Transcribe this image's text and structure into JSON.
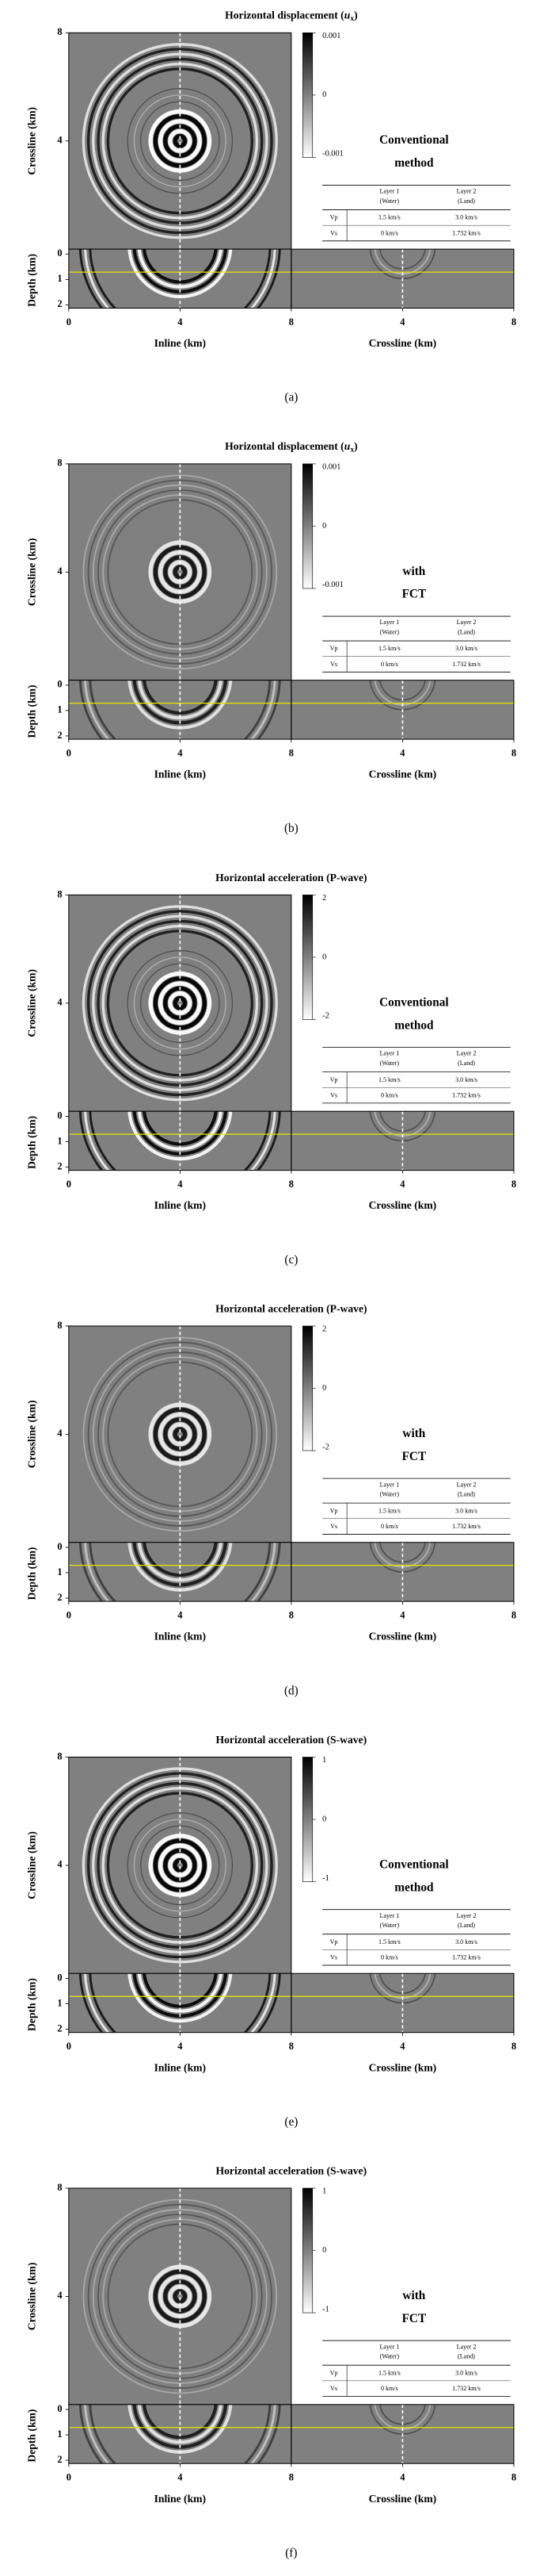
{
  "panels": [
    {
      "title": {
        "text": "Horizontal displacement (",
        "var": "u",
        "sub": "x",
        "end": ")"
      },
      "colorbar": {
        "clim": [
          -0.001,
          0.001
        ],
        "ticks": [
          0.001,
          0,
          -0.001
        ]
      },
      "method": [
        "Conventional",
        "method"
      ],
      "table": {
        "header": [
          [
            "Layer 1",
            "(Water)"
          ],
          [
            "Layer 2",
            "(Land)"
          ]
        ],
        "rows": [
          [
            "Vp",
            "1.5 km/s",
            "3.0 km/s"
          ],
          [
            "Vs",
            "0 km/s",
            "1.732 km/s"
          ]
        ]
      },
      "map": {
        "ylabel": "Crossline (km)",
        "ylim": [
          0,
          8
        ],
        "yticks": [
          4,
          8
        ]
      },
      "section": {
        "ylabel": "Depth (km)",
        "ylim": [
          0,
          2
        ],
        "yticks": [
          0,
          1,
          2
        ],
        "xlim": [
          0,
          8
        ],
        "inline": {
          "label": "Inline (km)",
          "ticks": [
            0,
            4,
            8
          ]
        },
        "crossline": {
          "label": "Crossline (km)",
          "ticks": [
            4,
            8
          ]
        }
      },
      "caption": "(a)"
    },
    {
      "title": {
        "text": "Horizontal displacement (",
        "var": "u",
        "sub": "x",
        "end": ")"
      },
      "colorbar": {
        "clim": [
          -0.001,
          0.001
        ],
        "ticks": [
          0.001,
          0,
          -0.001
        ]
      },
      "method": [
        "with",
        "FCT"
      ],
      "table": {
        "header": [
          [
            "Layer 1",
            "(Water)"
          ],
          [
            "Layer 2",
            "(Land)"
          ]
        ],
        "rows": [
          [
            "Vp",
            "1.5 km/s",
            "3.0 km/s"
          ],
          [
            "Vs",
            "0 km/s",
            "1.732 km/s"
          ]
        ]
      },
      "map": {
        "ylabel": "Crossline (km)",
        "ylim": [
          0,
          8
        ],
        "yticks": [
          4,
          8
        ]
      },
      "section": {
        "ylabel": "Depth (km)",
        "ylim": [
          0,
          2
        ],
        "yticks": [
          0,
          1,
          2
        ],
        "xlim": [
          0,
          8
        ],
        "inline": {
          "label": "Inline (km)",
          "ticks": [
            0,
            4,
            8
          ]
        },
        "crossline": {
          "label": "Crossline (km)",
          "ticks": [
            4,
            8
          ]
        }
      },
      "caption": "(b)"
    },
    {
      "title": "Horizontal acceleration (P-wave)",
      "colorbar": {
        "clim": [
          -2,
          2
        ],
        "ticks": [
          2,
          0,
          -2
        ]
      },
      "method": [
        "Conventional",
        "method"
      ],
      "table": {
        "header": [
          [
            "Layer 1",
            "(Water)"
          ],
          [
            "Layer 2",
            "(Land)"
          ]
        ],
        "rows": [
          [
            "Vp",
            "1.5 km/s",
            "3.0 km/s"
          ],
          [
            "Vs",
            "0 km/s",
            "1.732 km/s"
          ]
        ]
      },
      "map": {
        "ylabel": "Crossline (km)",
        "ylim": [
          0,
          8
        ],
        "yticks": [
          4,
          8
        ]
      },
      "section": {
        "ylabel": "Depth (km)",
        "ylim": [
          0,
          2
        ],
        "yticks": [
          0,
          1,
          2
        ],
        "xlim": [
          0,
          8
        ],
        "inline": {
          "label": "Inline (km)",
          "ticks": [
            0,
            4,
            8
          ]
        },
        "crossline": {
          "label": "Crossline (km)",
          "ticks": [
            4,
            8
          ]
        }
      },
      "caption": "(c)"
    },
    {
      "title": "Horizontal acceleration (P-wave)",
      "colorbar": {
        "clim": [
          -2,
          2
        ],
        "ticks": [
          2,
          0,
          -2
        ]
      },
      "method": [
        "with",
        "FCT"
      ],
      "table": {
        "header": [
          [
            "Layer 1",
            "(Water)"
          ],
          [
            "Layer 2",
            "(Land)"
          ]
        ],
        "rows": [
          [
            "Vp",
            "1.5 km/s",
            "3.0 km/s"
          ],
          [
            "Vs",
            "0 km/s",
            "1.732 km/s"
          ]
        ]
      },
      "map": {
        "ylabel": "Crossline (km)",
        "ylim": [
          0,
          8
        ],
        "yticks": [
          4,
          8
        ]
      },
      "section": {
        "ylabel": "Depth (km)",
        "ylim": [
          0,
          2
        ],
        "yticks": [
          0,
          1,
          2
        ],
        "xlim": [
          0,
          8
        ],
        "inline": {
          "label": "Inline (km)",
          "ticks": [
            0,
            4,
            8
          ]
        },
        "crossline": {
          "label": "Crossline (km)",
          "ticks": [
            4,
            8
          ]
        }
      },
      "caption": "(d)"
    },
    {
      "title": "Horizontal acceleration (S-wave)",
      "colorbar": {
        "clim": [
          -1,
          1
        ],
        "ticks": [
          1,
          0,
          -1
        ]
      },
      "method": [
        "Conventional",
        "method"
      ],
      "table": {
        "header": [
          [
            "Layer 1",
            "(Water)"
          ],
          [
            "Layer 2",
            "(Land)"
          ]
        ],
        "rows": [
          [
            "Vp",
            "1.5 km/s",
            "3.0 km/s"
          ],
          [
            "Vs",
            "0 km/s",
            "1.732 km/s"
          ]
        ]
      },
      "map": {
        "ylabel": "Crossline (km)",
        "ylim": [
          0,
          8
        ],
        "yticks": [
          4,
          8
        ]
      },
      "section": {
        "ylabel": "Depth (km)",
        "ylim": [
          0,
          2
        ],
        "yticks": [
          0,
          1,
          2
        ],
        "xlim": [
          0,
          8
        ],
        "inline": {
          "label": "Inline (km)",
          "ticks": [
            0,
            4,
            8
          ]
        },
        "crossline": {
          "label": "Crossline (km)",
          "ticks": [
            4,
            8
          ]
        }
      },
      "caption": "(e)"
    },
    {
      "title": "Horizontal acceleration (S-wave)",
      "colorbar": {
        "clim": [
          -1,
          1
        ],
        "ticks": [
          1,
          0,
          -1
        ]
      },
      "method": [
        "with",
        "FCT"
      ],
      "table": {
        "header": [
          [
            "Layer 1",
            "(Water)"
          ],
          [
            "Layer 2",
            "(Land)"
          ]
        ],
        "rows": [
          [
            "Vp",
            "1.5 km/s",
            "3.0 km/s"
          ],
          [
            "Vs",
            "0 km/s",
            "1.732 km/s"
          ]
        ]
      },
      "map": {
        "ylabel": "Crossline (km)",
        "ylim": [
          0,
          8
        ],
        "yticks": [
          4,
          8
        ]
      },
      "section": {
        "ylabel": "Depth (km)",
        "ylim": [
          0,
          2
        ],
        "yticks": [
          0,
          1,
          2
        ],
        "xlim": [
          0,
          8
        ],
        "inline": {
          "label": "Inline (km)",
          "ticks": [
            0,
            4,
            8
          ]
        },
        "crossline": {
          "label": "Crossline (km)",
          "ticks": [
            4,
            8
          ]
        }
      },
      "caption": "(f)"
    }
  ]
}
